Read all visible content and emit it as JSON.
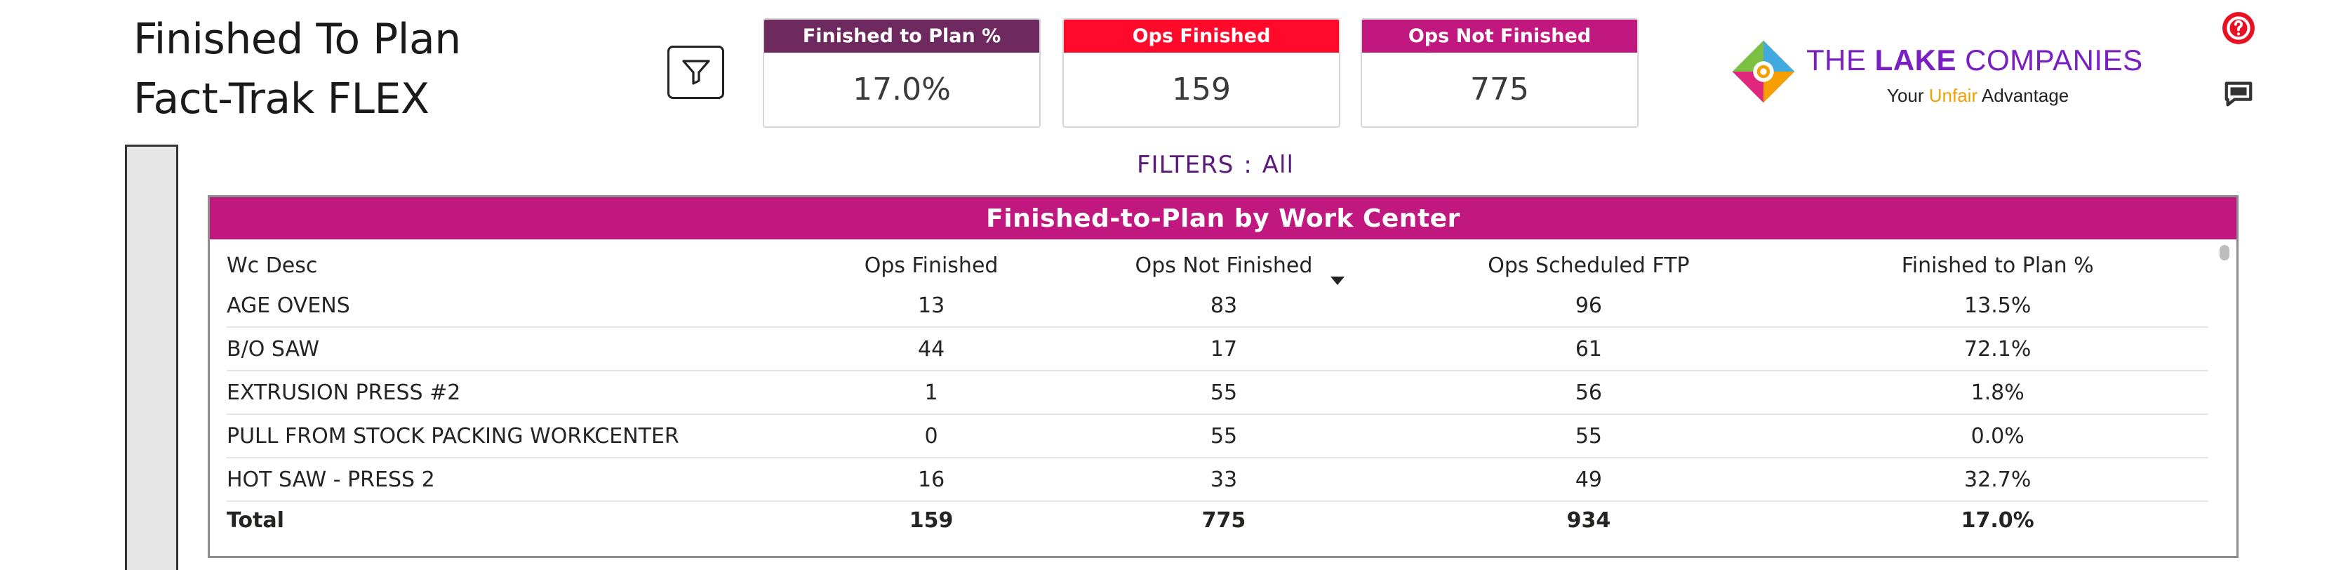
{
  "page": {
    "title_line1": "Finished To Plan",
    "title_line2": "Fact-Trak FLEX"
  },
  "filter_button": {
    "icon": "filter-funnel-icon"
  },
  "kpis": [
    {
      "label": "Finished to Plan %",
      "value": "17.0%",
      "color": "#6e2a5e"
    },
    {
      "label": "Ops Finished",
      "value": "159",
      "color": "#ff0a2a"
    },
    {
      "label": "Ops Not Finished",
      "value": "775",
      "color": "#c0187e"
    }
  ],
  "logo": {
    "brand_pre": "THE ",
    "brand_bold": "LAKE",
    "brand_post": " COMPANIES",
    "tag_pre": "Your ",
    "tag_highlight": "Unfair",
    "tag_post": " Advantage",
    "icon": "lake-companies-logo-icon"
  },
  "side_icons": {
    "help": "help-icon",
    "comment": "comment-icon"
  },
  "filters": {
    "label": "FILTERS",
    "separator": ":",
    "value": "All"
  },
  "table": {
    "title": "Finished-to-Plan by Work Center",
    "title_color": "#c0187e",
    "columns": [
      "Wc Desc",
      "Ops Finished",
      "Ops Not Finished",
      "Ops Scheduled FTP",
      "Finished to Plan %"
    ],
    "sorted_column": "Ops Not Finished",
    "rows": [
      [
        "AGE OVENS",
        "13",
        "83",
        "96",
        "13.5%"
      ],
      [
        "B/O SAW",
        "44",
        "17",
        "61",
        "72.1%"
      ],
      [
        "EXTRUSION PRESS #2",
        "1",
        "55",
        "56",
        "1.8%"
      ],
      [
        "PULL FROM STOCK PACKING WORKCENTER",
        "0",
        "55",
        "55",
        "0.0%"
      ],
      [
        "HOT SAW - PRESS 2",
        "16",
        "33",
        "49",
        "32.7%"
      ]
    ],
    "total": [
      "Total",
      "159",
      "775",
      "934",
      "17.0%"
    ]
  }
}
